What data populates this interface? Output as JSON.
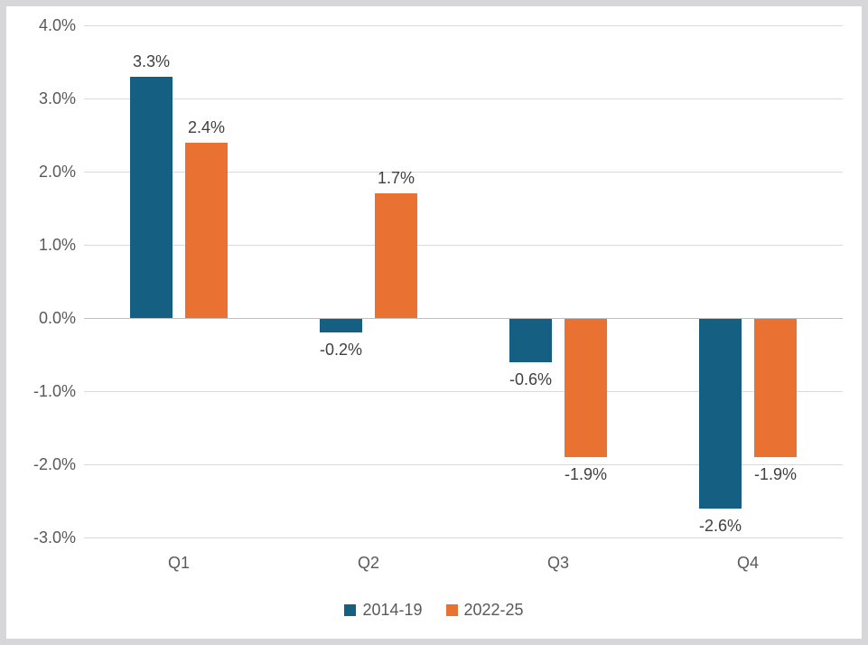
{
  "frame": {
    "border_color": "#d7d7da",
    "background_color": "#ffffff"
  },
  "chart_data": {
    "type": "bar",
    "title": "",
    "categories": [
      "Q1",
      "Q2",
      "Q3",
      "Q4"
    ],
    "series": [
      {
        "name": "2014-19",
        "color": "#156082",
        "values": [
          3.3,
          -0.2,
          -0.6,
          -2.6
        ],
        "data_labels": [
          "3.3%",
          "-0.2%",
          "-0.6%",
          "-2.6%"
        ]
      },
      {
        "name": "2022-25",
        "color": "#e97132",
        "values": [
          2.4,
          1.7,
          -1.9,
          -1.9
        ],
        "data_labels": [
          "2.4%",
          "1.7%",
          "-1.9%",
          "-1.9%"
        ]
      }
    ],
    "y_axis": {
      "min": -3.0,
      "max": 4.0,
      "step": 1.0,
      "tick_labels": [
        "4.0%",
        "3.0%",
        "2.0%",
        "1.0%",
        "0.0%",
        "-1.0%",
        "-2.0%",
        "-3.0%"
      ]
    },
    "grid": true,
    "gridline_color": "#d9d9d9",
    "zero_line_color": "#bfbfbf",
    "axis_text_color": "#595959",
    "data_label_color": "#404040",
    "legend": {
      "position": "bottom",
      "entries": [
        "2014-19",
        "2022-25"
      ]
    }
  }
}
